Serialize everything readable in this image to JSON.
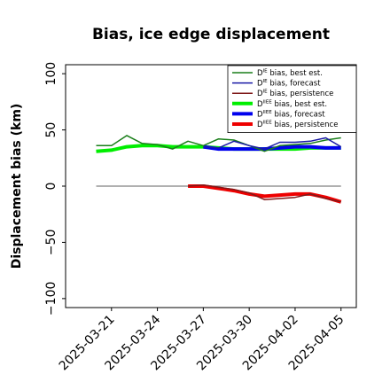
{
  "chart_data": {
    "type": "line",
    "title": "Bias, ice edge displacement",
    "ylabel": "Displacement bias (km)",
    "xlabel": "",
    "ylim": [
      -108,
      108
    ],
    "xlim": [
      "2025-03-18",
      "2025-04-06"
    ],
    "x_ticks": [
      "2025-03-21",
      "2025-03-24",
      "2025-03-27",
      "2025-03-30",
      "2025-04-02",
      "2025-04-05"
    ],
    "x_tick_colors": [
      "#000000",
      "#000000",
      "#228B22",
      "#000000",
      "#000000",
      "#000000"
    ],
    "y_ticks": [
      100,
      50,
      0,
      -50,
      -100
    ],
    "grid": false,
    "legend_position": "top-right",
    "zero_line": {
      "y": 0,
      "x": [
        "2025-03-20",
        "2025-04-05"
      ],
      "color": "#808080"
    },
    "series": [
      {
        "name_prefix": "D",
        "name_sup": "IE",
        "name_suffix": " bias, best est.",
        "color": "#1a7f1a",
        "width": 1.5,
        "x": [
          "2025-03-20",
          "2025-03-21",
          "2025-03-22",
          "2025-03-23",
          "2025-03-24",
          "2025-03-25",
          "2025-03-26",
          "2025-03-27",
          "2025-03-28",
          "2025-03-29",
          "2025-03-30",
          "2025-03-31",
          "2025-04-01",
          "2025-04-02",
          "2025-04-03",
          "2025-04-04",
          "2025-04-05"
        ],
        "values": [
          36,
          36,
          45,
          38,
          37,
          33,
          40,
          36,
          42,
          41,
          36,
          31,
          36,
          37,
          38,
          41,
          43
        ]
      },
      {
        "name_prefix": "D",
        "name_sup": "IE",
        "name_suffix": " bias, forecast",
        "color": "#1a1aa6",
        "width": 1.5,
        "x": [
          "2025-03-27",
          "2025-03-28",
          "2025-03-29",
          "2025-03-30",
          "2025-03-31",
          "2025-04-01",
          "2025-04-02",
          "2025-04-03",
          "2025-04-04",
          "2025-04-05"
        ],
        "values": [
          35,
          34,
          40,
          36,
          33,
          39,
          39,
          40,
          43,
          35
        ]
      },
      {
        "name_prefix": "D",
        "name_sup": "IE",
        "name_suffix": " bias, persistence",
        "color": "#7f1a1a",
        "width": 1.5,
        "x": [
          "2025-03-26",
          "2025-03-27",
          "2025-03-28",
          "2025-03-29",
          "2025-03-30",
          "2025-03-31",
          "2025-04-01",
          "2025-04-02",
          "2025-04-03",
          "2025-04-04",
          "2025-04-05"
        ],
        "values": [
          0,
          1,
          -1,
          -3,
          -6,
          -12,
          -11,
          -10,
          -7,
          -11,
          -14
        ]
      },
      {
        "name_prefix": "D",
        "name_sup": "IIEE",
        "name_suffix": " bias, best est.",
        "color": "#00ee00",
        "width": 4,
        "x": [
          "2025-03-20",
          "2025-03-21",
          "2025-03-22",
          "2025-03-23",
          "2025-03-24",
          "2025-03-25",
          "2025-03-26",
          "2025-03-27",
          "2025-03-28",
          "2025-03-29",
          "2025-03-30",
          "2025-03-31",
          "2025-04-01",
          "2025-04-02",
          "2025-04-03",
          "2025-04-04",
          "2025-04-05"
        ],
        "values": [
          31,
          32,
          35,
          36,
          36,
          35,
          35,
          35,
          34,
          33,
          33,
          33,
          33,
          33,
          34,
          34,
          34
        ]
      },
      {
        "name_prefix": "D",
        "name_sup": "IIEE",
        "name_suffix": " bias, forecast",
        "color": "#0000ee",
        "width": 4,
        "x": [
          "2025-03-27",
          "2025-03-28",
          "2025-03-29",
          "2025-03-30",
          "2025-03-31",
          "2025-04-01",
          "2025-04-02",
          "2025-04-03",
          "2025-04-04",
          "2025-04-05"
        ],
        "values": [
          35,
          33,
          33,
          33,
          33,
          34,
          35,
          35,
          34,
          34
        ]
      },
      {
        "name_prefix": "D",
        "name_sup": "IIEE",
        "name_suffix": " bias, persistence",
        "color": "#ee0000",
        "width": 4,
        "x": [
          "2025-03-26",
          "2025-03-27",
          "2025-03-28",
          "2025-03-29",
          "2025-03-30",
          "2025-03-31",
          "2025-04-01",
          "2025-04-02",
          "2025-04-03",
          "2025-04-04",
          "2025-04-05"
        ],
        "values": [
          0,
          0,
          -2,
          -4,
          -7,
          -9,
          -8,
          -7,
          -7,
          -10,
          -14
        ]
      }
    ]
  }
}
